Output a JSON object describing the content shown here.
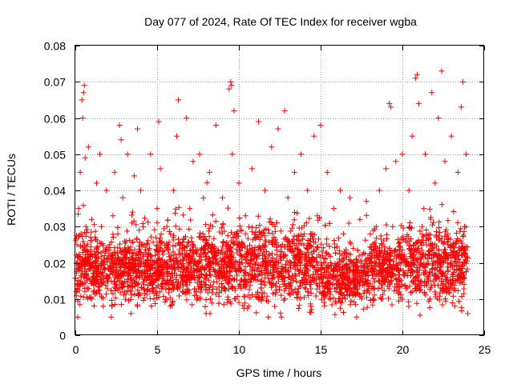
{
  "chart_data": {
    "type": "scatter",
    "title": "Day 077 of 2024, Rate Of TEC Index for receiver wgba",
    "xlabel": "GPS time / hours",
    "ylabel": "ROTI / TECUs",
    "xlim": [
      0,
      25
    ],
    "ylim": [
      0,
      0.08
    ],
    "x_ticks": [
      0,
      5,
      10,
      15,
      20,
      25
    ],
    "x_tick_labels": [
      "0",
      "5",
      "10",
      "15",
      "20",
      "25"
    ],
    "y_ticks": [
      0,
      0.01,
      0.02,
      0.03,
      0.04,
      0.05,
      0.06,
      0.07,
      0.08
    ],
    "y_tick_labels": [
      "0",
      "0.01",
      "0.02",
      "0.03",
      "0.04",
      "0.05",
      "0.06",
      "0.07",
      "0.08"
    ],
    "grid": true,
    "marker": "+",
    "color": "#ff0000",
    "series": [
      {
        "name": "ROTI",
        "points": [
          [
            0.05,
            0.012
          ],
          [
            0.1,
            0.025
          ],
          [
            0.15,
            0.005
          ],
          [
            0.2,
            0.035
          ],
          [
            0.25,
            0.018
          ],
          [
            0.3,
            0.045
          ],
          [
            0.35,
            0.028
          ],
          [
            0.4,
            0.065
          ],
          [
            0.45,
            0.06
          ],
          [
            0.5,
            0.067
          ],
          [
            0.55,
            0.069
          ],
          [
            0.6,
            0.049
          ],
          [
            0.65,
            0.03
          ],
          [
            0.7,
            0.015
          ],
          [
            0.8,
            0.052
          ],
          [
            0.9,
            0.02
          ],
          [
            1.0,
            0.032
          ],
          [
            1.1,
            0.012
          ],
          [
            1.2,
            0.027
          ],
          [
            1.3,
            0.042
          ],
          [
            1.4,
            0.017
          ],
          [
            1.5,
            0.05
          ],
          [
            1.6,
            0.03
          ],
          [
            1.7,
            0.008
          ],
          [
            1.8,
            0.022
          ],
          [
            1.9,
            0.04
          ],
          [
            2.0,
            0.015
          ],
          [
            2.1,
            0.025
          ],
          [
            2.2,
            0.005
          ],
          [
            2.3,
            0.033
          ],
          [
            2.4,
            0.045
          ],
          [
            2.5,
            0.018
          ],
          [
            2.6,
            0.028
          ],
          [
            2.7,
            0.058
          ],
          [
            2.8,
            0.054
          ],
          [
            2.9,
            0.038
          ],
          [
            3.0,
            0.012
          ],
          [
            3.1,
            0.026
          ],
          [
            3.2,
            0.05
          ],
          [
            3.3,
            0.02
          ],
          [
            3.4,
            0.006
          ],
          [
            3.5,
            0.034
          ],
          [
            3.6,
            0.044
          ],
          [
            3.7,
            0.016
          ],
          [
            3.8,
            0.057
          ],
          [
            3.9,
            0.029
          ],
          [
            4.0,
            0.04
          ],
          [
            4.2,
            0.014
          ],
          [
            4.4,
            0.025
          ],
          [
            4.6,
            0.05
          ],
          [
            4.8,
            0.01
          ],
          [
            5.0,
            0.035
          ],
          [
            5.1,
            0.059
          ],
          [
            5.2,
            0.046
          ],
          [
            5.4,
            0.02
          ],
          [
            5.6,
            0.03
          ],
          [
            5.8,
            0.008
          ],
          [
            6.0,
            0.04
          ],
          [
            6.2,
            0.055
          ],
          [
            6.3,
            0.065
          ],
          [
            6.4,
            0.025
          ],
          [
            6.6,
            0.015
          ],
          [
            6.8,
            0.06
          ],
          [
            7.0,
            0.035
          ],
          [
            7.2,
            0.048
          ],
          [
            7.4,
            0.012
          ],
          [
            7.6,
            0.05
          ],
          [
            7.8,
            0.028
          ],
          [
            8.0,
            0.006
          ],
          [
            8.2,
            0.045
          ],
          [
            8.4,
            0.03
          ],
          [
            8.6,
            0.058
          ],
          [
            8.8,
            0.018
          ],
          [
            9.0,
            0.038
          ],
          [
            9.2,
            0.025
          ],
          [
            9.4,
            0.068
          ],
          [
            9.5,
            0.07
          ],
          [
            9.55,
            0.069
          ],
          [
            9.6,
            0.05
          ],
          [
            9.7,
            0.062
          ],
          [
            9.8,
            0.01
          ],
          [
            10.0,
            0.042
          ],
          [
            10.2,
            0.02
          ],
          [
            10.4,
            0.033
          ],
          [
            10.6,
            0.008
          ],
          [
            10.8,
            0.046
          ],
          [
            11.0,
            0.027
          ],
          [
            11.2,
            0.059
          ],
          [
            11.4,
            0.015
          ],
          [
            11.6,
            0.04
          ],
          [
            11.8,
            0.005
          ],
          [
            12.0,
            0.052
          ],
          [
            12.2,
            0.03
          ],
          [
            12.4,
            0.057
          ],
          [
            12.6,
            0.005
          ],
          [
            12.8,
            0.062
          ],
          [
            13.0,
            0.038
          ],
          [
            13.2,
            0.02
          ],
          [
            13.4,
            0.045
          ],
          [
            13.6,
            0.012
          ],
          [
            13.8,
            0.05
          ],
          [
            14.0,
            0.028
          ],
          [
            14.2,
            0.04
          ],
          [
            14.4,
            0.008
          ],
          [
            14.6,
            0.055
          ],
          [
            14.8,
            0.033
          ],
          [
            15.0,
            0.058
          ],
          [
            15.2,
            0.02
          ],
          [
            15.4,
            0.045
          ],
          [
            15.6,
            0.01
          ],
          [
            15.8,
            0.035
          ],
          [
            16.0,
            0.018
          ],
          [
            16.2,
            0.04
          ],
          [
            16.4,
            0.028
          ],
          [
            16.6,
            0.012
          ],
          [
            16.8,
            0.038
          ],
          [
            17.0,
            0.024
          ],
          [
            17.2,
            0.005
          ],
          [
            17.4,
            0.032
          ],
          [
            17.6,
            0.015
          ],
          [
            17.8,
            0.037
          ],
          [
            18.0,
            0.022
          ],
          [
            18.2,
            0.01
          ],
          [
            18.4,
            0.03
          ],
          [
            18.6,
            0.04
          ],
          [
            18.8,
            0.018
          ],
          [
            19.0,
            0.046
          ],
          [
            19.2,
            0.064
          ],
          [
            19.3,
            0.063
          ],
          [
            19.4,
            0.03
          ],
          [
            19.6,
            0.048
          ],
          [
            19.8,
            0.012
          ],
          [
            20.0,
            0.05
          ],
          [
            20.2,
            0.026
          ],
          [
            20.4,
            0.04
          ],
          [
            20.6,
            0.055
          ],
          [
            20.8,
            0.071
          ],
          [
            20.9,
            0.072
          ],
          [
            21.0,
            0.064
          ],
          [
            21.2,
            0.03
          ],
          [
            21.4,
            0.05
          ],
          [
            21.6,
            0.015
          ],
          [
            21.8,
            0.067
          ],
          [
            22.0,
            0.042
          ],
          [
            22.2,
            0.06
          ],
          [
            22.4,
            0.073
          ],
          [
            22.6,
            0.048
          ],
          [
            22.8,
            0.025
          ],
          [
            23.0,
            0.055
          ],
          [
            23.2,
            0.008
          ],
          [
            23.4,
            0.045
          ],
          [
            23.6,
            0.063
          ],
          [
            23.7,
            0.07
          ],
          [
            23.8,
            0.03
          ],
          [
            23.9,
            0.05
          ],
          [
            24.0,
            0.006
          ]
        ]
      }
    ],
    "density_bands": [
      {
        "from": 0.0,
        "to": 1.0,
        "lo": 0.004,
        "hi": 0.034
      },
      {
        "from": 1.0,
        "to": 3.0,
        "lo": 0.005,
        "hi": 0.03
      },
      {
        "from": 3.0,
        "to": 5.0,
        "lo": 0.005,
        "hi": 0.032
      },
      {
        "from": 5.0,
        "to": 7.5,
        "lo": 0.005,
        "hi": 0.032
      },
      {
        "from": 7.5,
        "to": 9.5,
        "lo": 0.005,
        "hi": 0.034
      },
      {
        "from": 9.5,
        "to": 12.0,
        "lo": 0.004,
        "hi": 0.036
      },
      {
        "from": 12.0,
        "to": 15.0,
        "lo": 0.004,
        "hi": 0.035
      },
      {
        "from": 15.0,
        "to": 18.0,
        "lo": 0.004,
        "hi": 0.028
      },
      {
        "from": 18.0,
        "to": 20.0,
        "lo": 0.005,
        "hi": 0.032
      },
      {
        "from": 20.0,
        "to": 22.5,
        "lo": 0.004,
        "hi": 0.036
      },
      {
        "from": 22.5,
        "to": 24.0,
        "lo": 0.003,
        "hi": 0.034
      }
    ],
    "density_count": 3600
  }
}
